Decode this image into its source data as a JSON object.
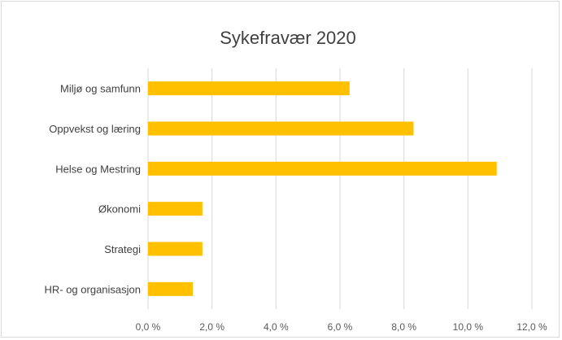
{
  "chart_data": {
    "type": "bar",
    "orientation": "horizontal",
    "title": "Sykefravær 2020",
    "xlabel": "",
    "ylabel": "",
    "categories": [
      "Miljø og samfunn",
      "Oppvekst og læring",
      "Helse og Mestring",
      "Økonomi",
      "Strategi",
      "HR- og organisasjon"
    ],
    "values": [
      6.3,
      8.3,
      10.9,
      1.7,
      1.7,
      1.4
    ],
    "unit": "%",
    "xlim": [
      0,
      12
    ],
    "x_ticks": [
      "0,0 %",
      "2,0 %",
      "4,0 %",
      "6,0 %",
      "8,0 %",
      "10,0 %",
      "12,0 %"
    ],
    "bar_color": "#FFC000",
    "grid": true,
    "legend": "none"
  }
}
